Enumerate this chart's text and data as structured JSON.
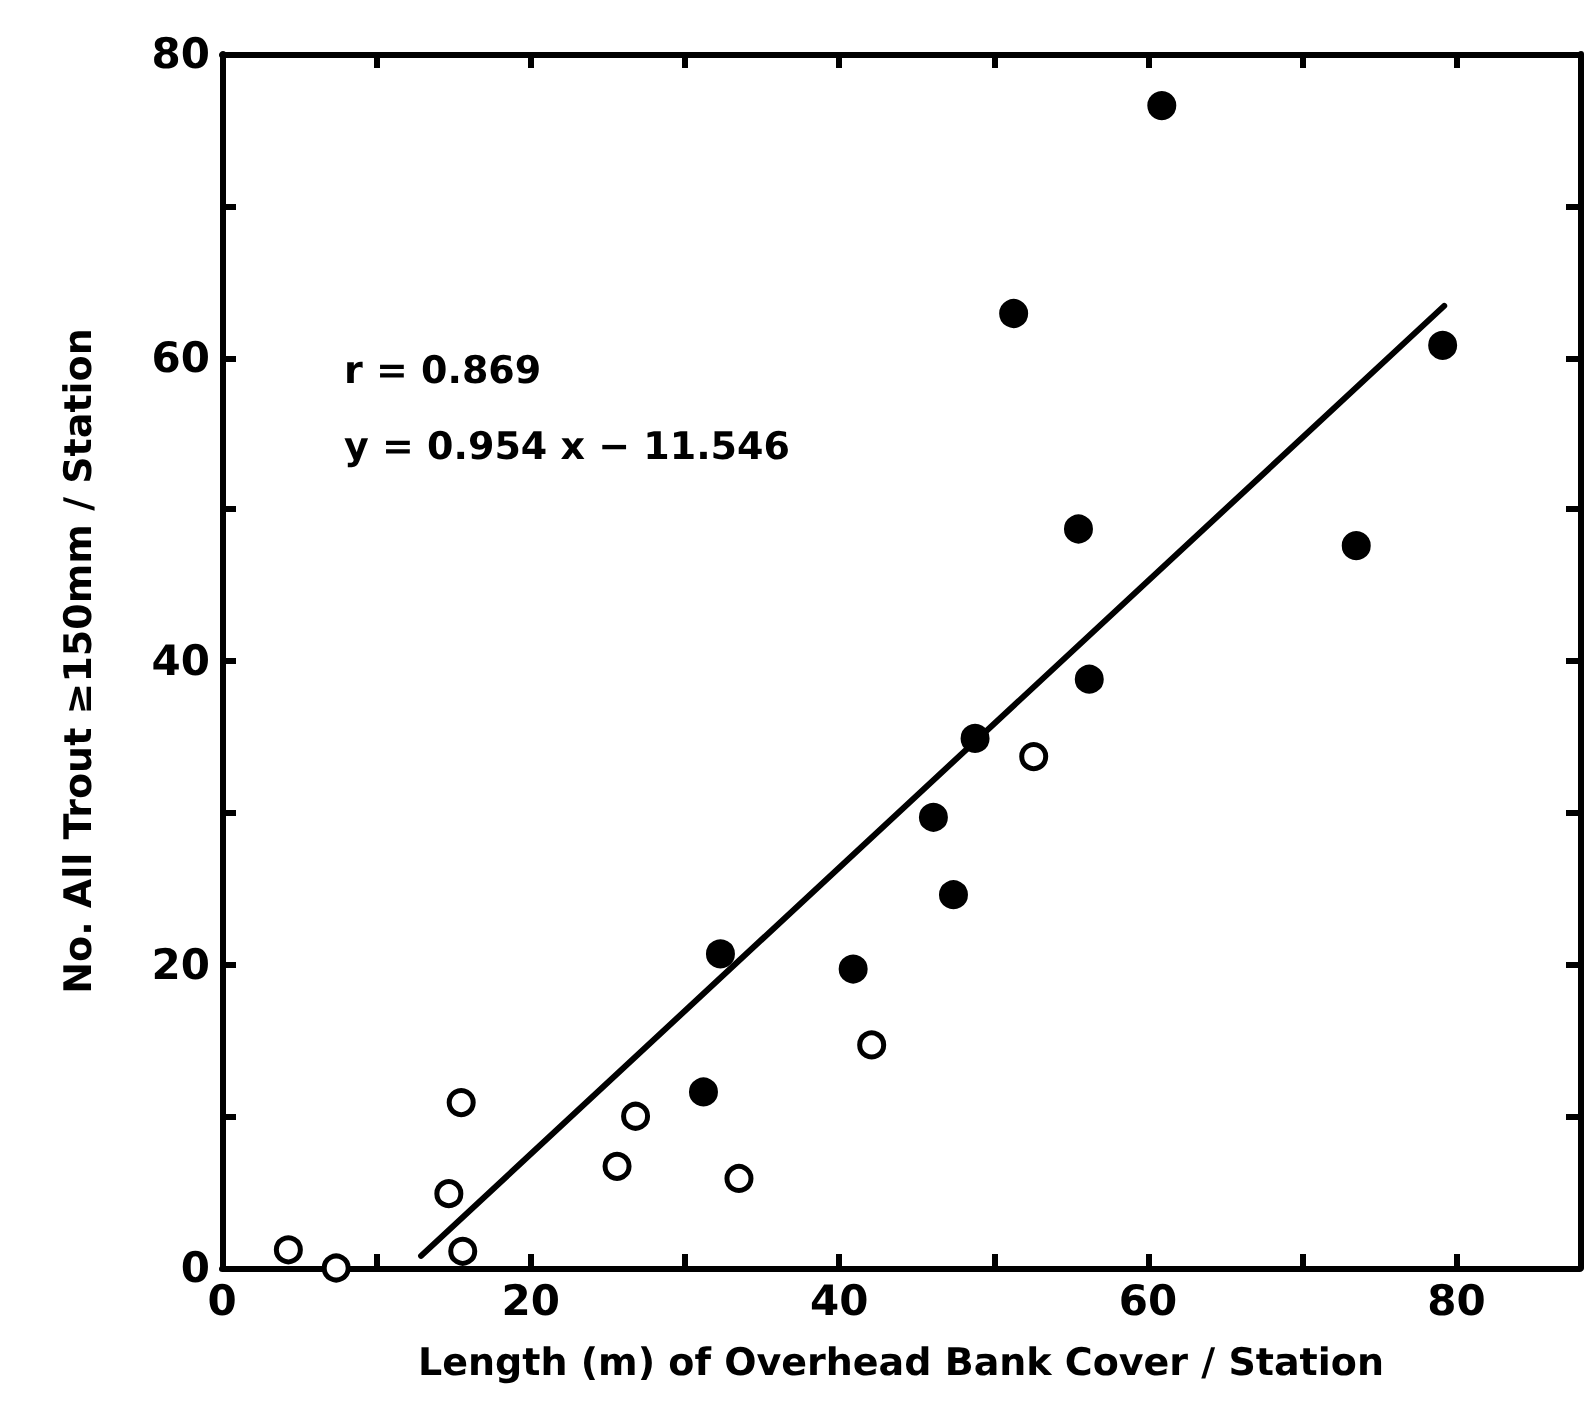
{
  "chart_data": {
    "type": "scatter",
    "xlabel": "Length (m) of Overhead Bank Cover / Station",
    "ylabel": "No. All Trout ≥150mm / Station",
    "xlim": [
      0,
      88
    ],
    "xticks": [
      0,
      {
        "value": 10,
        "label": null
      },
      20,
      {
        "value": 30,
        "label": null
      },
      40,
      {
        "value": 50,
        "label": null
      },
      60,
      {
        "value": 70,
        "label": null
      },
      80
    ],
    "ylim": [
      0,
      80
    ],
    "yticks": [
      0,
      {
        "value": 10,
        "label": null
      },
      20,
      {
        "value": 30,
        "label": null
      },
      40,
      {
        "value": 50,
        "label": null
      },
      60,
      {
        "value": 70,
        "label": null
      },
      80
    ],
    "grid": false,
    "marker": "circle",
    "annotations": [
      "r = 0.869",
      "y = 0.954 x − 11.546"
    ],
    "series": [
      {
        "color": "#000000",
        "x": [
          60.9,
          51.3,
          79.1,
          55.5,
          73.5,
          56.2,
          48.8,
          46.1,
          47.4,
          32.3,
          40.9,
          31.2
        ],
        "values": [
          76.6,
          62.9,
          60.8,
          48.7,
          47.6,
          38.8,
          34.9,
          29.7,
          24.6,
          20.7,
          19.7,
          11.6
        ]
      },
      {
        "color": "#ffffff",
        "x": [
          52.6,
          42.1,
          15.5,
          26.8,
          25.6,
          33.5,
          14.7,
          15.6,
          4.3,
          7.4
        ],
        "values": [
          33.7,
          14.7,
          10.9,
          10.0,
          6.7,
          5.9,
          4.9,
          1.1,
          1.2,
          0
        ]
      },
      {
        "type": "line",
        "color": "#000000",
        "marker": "none",
        "line_style": "solid",
        "x": [
          12.9,
          79.2
        ],
        "values": [
          0.8,
          63.4
        ]
      }
    ]
  }
}
